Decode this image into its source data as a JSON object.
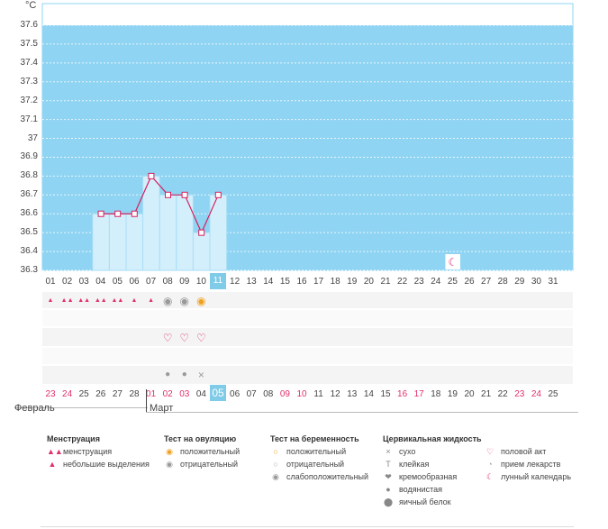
{
  "unit": "°C",
  "y_ticks": [
    "37.6",
    "37.5",
    "37.4",
    "37.3",
    "37.2",
    "37.1",
    "37",
    "36.9",
    "36.8",
    "36.7",
    "36.6",
    "36.5",
    "36.4",
    "36.3"
  ],
  "days": [
    "01",
    "02",
    "03",
    "04",
    "05",
    "06",
    "07",
    "08",
    "09",
    "10",
    "11",
    "12",
    "13",
    "14",
    "15",
    "16",
    "17",
    "18",
    "19",
    "20",
    "21",
    "22",
    "23",
    "24",
    "25",
    "26",
    "27",
    "28",
    "29",
    "30",
    "31"
  ],
  "selected_day": "11",
  "calendar": [
    {
      "d": "23",
      "red": true
    },
    {
      "d": "24",
      "red": true
    },
    {
      "d": "25",
      "red": false
    },
    {
      "d": "26",
      "red": false
    },
    {
      "d": "27",
      "red": false
    },
    {
      "d": "28",
      "red": false
    },
    {
      "d": "01",
      "red": true
    },
    {
      "d": "02",
      "red": true
    },
    {
      "d": "03",
      "red": true
    },
    {
      "d": "04",
      "red": false
    },
    {
      "d": "05",
      "red": false,
      "sel": true
    },
    {
      "d": "06",
      "red": false
    },
    {
      "d": "07",
      "red": false
    },
    {
      "d": "08",
      "red": false
    },
    {
      "d": "09",
      "red": true
    },
    {
      "d": "10",
      "red": true
    },
    {
      "d": "11",
      "red": false
    },
    {
      "d": "12",
      "red": false
    },
    {
      "d": "13",
      "red": false
    },
    {
      "d": "14",
      "red": false
    },
    {
      "d": "15",
      "red": false
    },
    {
      "d": "16",
      "red": true
    },
    {
      "d": "17",
      "red": true
    },
    {
      "d": "18",
      "red": false
    },
    {
      "d": "19",
      "red": false
    },
    {
      "d": "20",
      "red": false
    },
    {
      "d": "21",
      "red": false
    },
    {
      "d": "22",
      "red": false
    },
    {
      "d": "23",
      "red": true
    },
    {
      "d": "24",
      "red": true
    },
    {
      "d": "25",
      "red": false
    }
  ],
  "months": {
    "feb": "Февраль",
    "mar": "Март"
  },
  "chart_data": {
    "type": "line",
    "xlabel": "",
    "ylabel": "°C",
    "ylim": [
      36.3,
      37.6
    ],
    "x": [
      "04",
      "05",
      "06",
      "07",
      "08",
      "09",
      "10",
      "11"
    ],
    "values": [
      36.6,
      36.6,
      36.6,
      36.8,
      36.7,
      36.7,
      36.5,
      36.7
    ]
  },
  "markers": {
    "menstruation_heavy_days": [
      "02",
      "03",
      "04",
      "05"
    ],
    "menstruation_light_days": [
      "01",
      "06",
      "07"
    ],
    "ovulation_negative_days": [
      "08",
      "09"
    ],
    "ovulation_positive_days": [
      "10"
    ],
    "intercourse_days": [
      "08",
      "09",
      "10"
    ],
    "fluid_water_days": [
      "08",
      "09"
    ],
    "fluid_dry_days": [
      "10"
    ],
    "lunar_days": [
      "25"
    ]
  },
  "colors": {
    "chart_bg": "#8fd4f2",
    "bar_fill": "#d4effc",
    "line": "#d4215f",
    "accent_red": "#e0306a"
  },
  "legend": {
    "menstruation": {
      "title": "Менструация",
      "items": [
        "менструация",
        "небольшие выделения"
      ]
    },
    "ovulation": {
      "title": "Тест на овуляцию",
      "items": [
        "положительный",
        "отрицательный"
      ]
    },
    "pregnancy": {
      "title": "Тест на беременность",
      "items": [
        "положительный",
        "отрицательный",
        "слабоположительный"
      ]
    },
    "fluid": {
      "title": "Цервикальная жидкость",
      "items": [
        "сухо",
        "клейкая",
        "кремообразная",
        "водянистая",
        "яичный белок"
      ]
    },
    "other": {
      "items": [
        "половой акт",
        "прием лекарств",
        "лунный календарь"
      ]
    }
  }
}
